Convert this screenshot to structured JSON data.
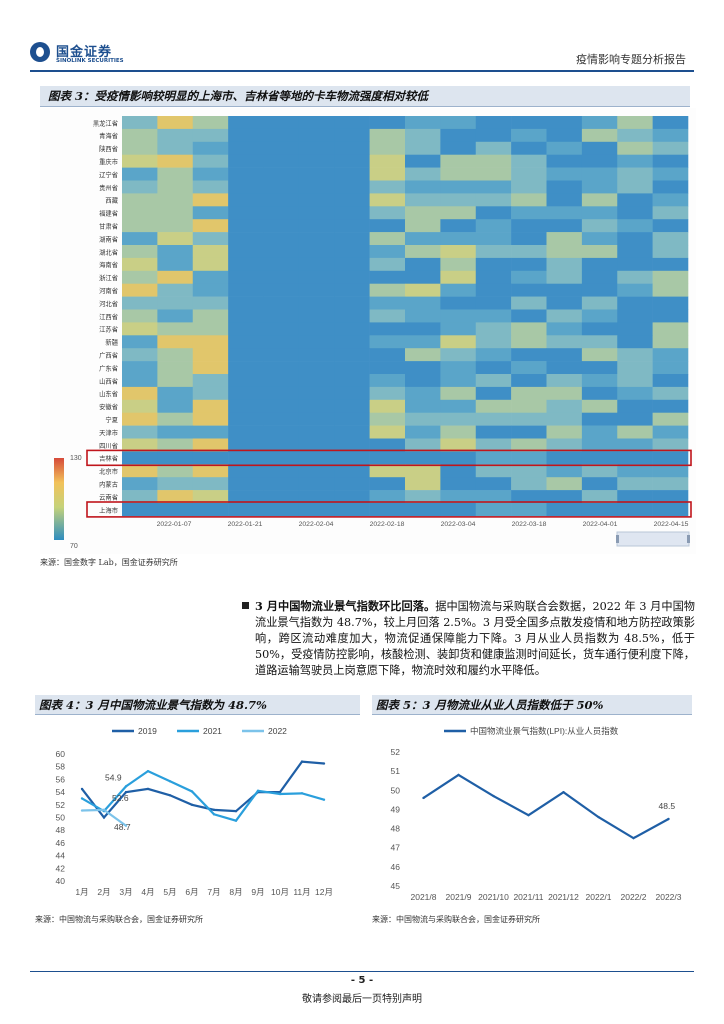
{
  "header": {
    "logo_cn": "国金证券",
    "logo_en": "SINOLINK SECURITIES",
    "report_type": "疫情影响专题分析报告"
  },
  "figure3": {
    "title": "图表 3：受疫情影响较明显的上海市、吉林省等地的卡车物流强度相对较低",
    "source": "来源：国金数字 Lab，国金证券研究所",
    "provinces": [
      "黑龙江省",
      "青海省",
      "陕西省",
      "重庆市",
      "辽宁省",
      "贵州省",
      "西藏",
      "福建省",
      "甘肃省",
      "湖南省",
      "湖北省",
      "海南省",
      "浙江省",
      "河南省",
      "河北省",
      "江西省",
      "江苏省",
      "新疆",
      "广西省",
      "广东省",
      "山西省",
      "山东省",
      "安徽省",
      "宁夏",
      "天津市",
      "四川省",
      "吉林省",
      "北京市",
      "内蒙古",
      "云南省",
      "上海市"
    ],
    "dates": [
      "2022-01-07",
      "2022-01-21",
      "2022-02-04",
      "2022-02-18",
      "2022-03-04",
      "2022-03-18",
      "2022-04-01",
      "2022-04-15"
    ],
    "scale_max": "130",
    "scale_min": "70",
    "highlighted": [
      "吉林省",
      "上海市"
    ]
  },
  "paragraph": {
    "lead": "3 月中国物流业景气指数环比回落。",
    "body": "据中国物流与采购联合会数据，2022 年 3 月中国物流业景气指数为 48.7%，较上月回落 2.5%。3 月受全国多点散发疫情和地方防控政策影响，跨区流动难度加大，物流促通保障能力下降。3 月从业人员指数为 48.5%，低于 50%，受疫情防控影响，核酸检测、装卸货和健康监测时间延长，货车通行便利度下降，道路运输驾驶员上岗意愿下降，物流时效和履约水平降低。"
  },
  "figure4": {
    "title": "图表 4：3 月中国物流业景气指数为 48.7%",
    "source": "来源：中国物流与采购联合会，国金证券研究所",
    "chart_data": {
      "type": "line",
      "categories": [
        "1月",
        "2月",
        "3月",
        "4月",
        "5月",
        "6月",
        "7月",
        "8月",
        "9月",
        "10月",
        "11月",
        "12月"
      ],
      "series": [
        {
          "name": "2019",
          "color": "#1f5fa6",
          "values": [
            54.5,
            50.0,
            54.0,
            54.5,
            53.5,
            52.0,
            51.2,
            51.0,
            54.0,
            54.0,
            58.8,
            58.5
          ]
        },
        {
          "name": "2021",
          "color": "#2a9fdc",
          "values": [
            53.0,
            51.0,
            54.9,
            57.3,
            55.7,
            54.1,
            50.5,
            49.5,
            54.2,
            53.7,
            53.8,
            52.8
          ]
        },
        {
          "name": "2022",
          "color": "#7cc3ea",
          "values": [
            51.1,
            51.2,
            48.7,
            null,
            null,
            null,
            null,
            null,
            null,
            null,
            null,
            null
          ]
        }
      ],
      "annotations": [
        "54.9",
        "52.6",
        "48.7"
      ],
      "ylim": [
        40,
        60
      ],
      "yticks": [
        "40",
        "42",
        "44",
        "46",
        "48",
        "50",
        "52",
        "54",
        "56",
        "58",
        "60"
      ]
    }
  },
  "figure5": {
    "title": "图表 5：3 月物流业从业人员指数低于 50%",
    "source": "来源：中国物流与采购联合会，国金证券研究所",
    "chart_data": {
      "type": "line",
      "categories": [
        "2021/8",
        "2021/9",
        "2021/10",
        "2021/11",
        "2021/12",
        "2022/1",
        "2022/2",
        "2022/3"
      ],
      "series": [
        {
          "name": "中国物流业景气指数(LPI):从业人员指数",
          "color": "#1f5fa6",
          "values": [
            49.6,
            50.8,
            49.7,
            48.7,
            49.9,
            48.6,
            47.5,
            48.5
          ]
        }
      ],
      "annotations": [
        "48.5"
      ],
      "ylim": [
        45,
        52
      ],
      "yticks": [
        "45",
        "46",
        "47",
        "48",
        "49",
        "50",
        "51",
        "52"
      ]
    }
  },
  "footer": {
    "page": "- 5 -",
    "disclaimer": "敬请参阅最后一页特别声明"
  }
}
